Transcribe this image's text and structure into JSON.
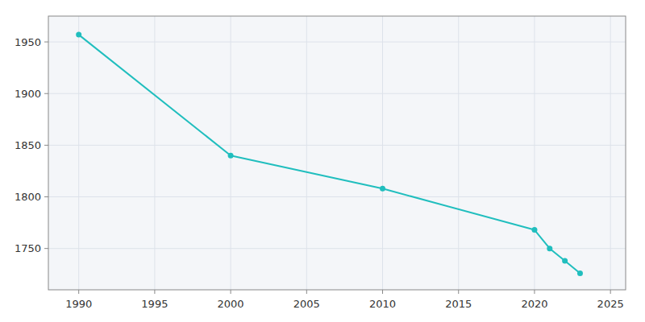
{
  "chart_data": {
    "type": "line",
    "x": [
      1990,
      2000,
      2010,
      2020,
      2021,
      2022,
      2023
    ],
    "values": [
      1957,
      1840,
      1808,
      1768,
      1750,
      1738,
      1726
    ],
    "color": "#20BEBE",
    "marker": "circle",
    "xlim": [
      1988,
      2026
    ],
    "ylim": [
      1710,
      1975
    ],
    "xticks": [
      1990,
      1995,
      2000,
      2005,
      2010,
      2015,
      2020,
      2025
    ],
    "yticks": [
      1750,
      1800,
      1850,
      1900,
      1950
    ],
    "grid": true
  }
}
